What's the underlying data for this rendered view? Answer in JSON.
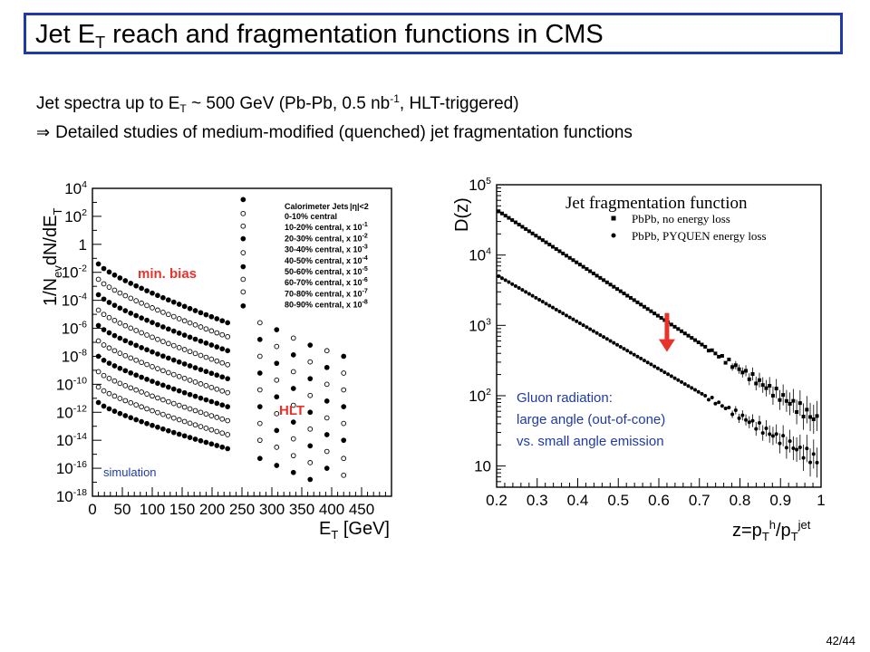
{
  "slide": {
    "title_main": "Jet E",
    "title_sub": "T",
    "title_rest": " reach and fragmentation functions in CMS",
    "bullet1": {
      "a": "Jet spectra up to E",
      "sub": "T",
      "b": " ~ 500 GeV (Pb-Pb, 0.5 nb",
      "sup": "-1",
      "c": ", HLT-triggered)"
    },
    "bullet2": {
      "arrow": "⇒",
      "text": "Detailed studies of medium-modified (quenched) jet fragmentation functions"
    },
    "page_number": "42/44"
  },
  "colors": {
    "accent": "#1f3aa8",
    "red": "#e8332a",
    "blue_text": "#1f3aa8"
  },
  "chart_data": [
    {
      "type": "scatter",
      "title": "",
      "xlabel": "E_T [GeV]",
      "ylabel": "1/N_ev dN/dE_T",
      "ylog": true,
      "xlim": [
        0,
        500
      ],
      "ylim_exp": [
        -18,
        4
      ],
      "x_ticks": [
        "0",
        "50",
        "100",
        "150",
        "200",
        "250",
        "300",
        "350",
        "400",
        "450"
      ],
      "x_tick_values": [
        0,
        50,
        100,
        150,
        200,
        250,
        300,
        350,
        400,
        450
      ],
      "y_ticks": [
        {
          "e": 4,
          "label": "10",
          "sup": "4"
        },
        {
          "e": 2,
          "label": "10",
          "sup": "2"
        },
        {
          "e": 0,
          "label": "1",
          "sup": ""
        },
        {
          "e": -2,
          "label": "10",
          "sup": "-2"
        },
        {
          "e": -4,
          "label": "10",
          "sup": "-4"
        },
        {
          "e": -6,
          "label": "10",
          "sup": "-6"
        },
        {
          "e": -8,
          "label": "10",
          "sup": "-8"
        },
        {
          "e": -10,
          "label": "10",
          "sup": "-10"
        },
        {
          "e": -12,
          "label": "10",
          "sup": "-12"
        },
        {
          "e": -14,
          "label": "10",
          "sup": "-14"
        },
        {
          "e": -16,
          "label": "10",
          "sup": "-16"
        },
        {
          "e": -18,
          "label": "10",
          "sup": "-18"
        }
      ],
      "legend_title": "Calorimeter Jets",
      "legend_cut": "|η|<2",
      "legend_entries": [
        {
          "label": "0-10% central",
          "sup": "",
          "filled": true
        },
        {
          "label": "10-20% central, x 10",
          "sup": "-1",
          "filled": false
        },
        {
          "label": "20-30% central, x 10",
          "sup": "-2",
          "filled": false
        },
        {
          "label": "30-40% central, x 10",
          "sup": "-3",
          "filled": true
        },
        {
          "label": "40-50% central, x 10",
          "sup": "-4",
          "filled": false
        },
        {
          "label": "50-60% central, x 10",
          "sup": "-5",
          "filled": true
        },
        {
          "label": "60-70% central, x 10",
          "sup": "-6",
          "filled": false
        },
        {
          "label": "70-80% central, x 10",
          "sup": "-7",
          "filled": false
        },
        {
          "label": "80-90% central, x 10",
          "sup": "-8",
          "filled": true
        }
      ],
      "annotations": {
        "min_bias": "min. bias",
        "hlt": "HLT",
        "simulation": "simulation"
      },
      "minbias_x": [
        10,
        19,
        28,
        37,
        46,
        55,
        64,
        73,
        82,
        91,
        100,
        109,
        118,
        127,
        136,
        145,
        154,
        163,
        172,
        181,
        190,
        199,
        208,
        217,
        226
      ],
      "minbias_series": [
        {
          "filled": true,
          "start_exp": -1.4,
          "end_exp": -5.6
        },
        {
          "filled": false,
          "start_exp": -2.5,
          "end_exp": -6.6
        },
        {
          "filled": true,
          "start_exp": -3.6,
          "end_exp": -7.6
        },
        {
          "filled": false,
          "start_exp": -4.7,
          "end_exp": -8.6
        },
        {
          "filled": true,
          "start_exp": -5.8,
          "end_exp": -9.6
        },
        {
          "filled": false,
          "start_exp": -6.9,
          "end_exp": -10.6
        },
        {
          "filled": true,
          "start_exp": -8.0,
          "end_exp": -11.6
        },
        {
          "filled": false,
          "start_exp": -9.1,
          "end_exp": -12.6
        },
        {
          "filled": false,
          "start_exp": -10.2,
          "end_exp": -13.6
        },
        {
          "filled": true,
          "start_exp": -11.3,
          "end_exp": -14.6
        }
      ],
      "hlt_columns": [
        {
          "x": 252,
          "points": [
            {
              "e": 3.2,
              "f": true
            },
            {
              "e": 2.2,
              "f": false
            },
            {
              "e": 1.3,
              "f": false
            },
            {
              "e": 0.4,
              "f": true
            },
            {
              "e": -0.6,
              "f": false
            },
            {
              "e": -1.6,
              "f": true
            },
            {
              "e": -2.5,
              "f": false
            },
            {
              "e": -3.4,
              "f": false
            },
            {
              "e": -4.4,
              "f": true
            }
          ]
        },
        {
          "x": 280,
          "points": [
            {
              "e": -5.6,
              "f": false
            },
            {
              "e": -6.8,
              "f": true
            },
            {
              "e": -8.0,
              "f": false
            },
            {
              "e": -9.2,
              "f": true
            },
            {
              "e": -10.4,
              "f": false
            },
            {
              "e": -11.6,
              "f": true
            },
            {
              "e": -12.8,
              "f": false
            },
            {
              "e": -14.0,
              "f": false
            },
            {
              "e": -15.3,
              "f": true
            }
          ]
        },
        {
          "x": 308,
          "points": [
            {
              "e": -6.1,
              "f": true
            },
            {
              "e": -7.3,
              "f": false
            },
            {
              "e": -8.5,
              "f": true
            },
            {
              "e": -9.7,
              "f": false
            },
            {
              "e": -10.9,
              "f": true
            },
            {
              "e": -12.1,
              "f": false
            },
            {
              "e": -13.3,
              "f": true
            },
            {
              "e": -14.5,
              "f": false
            },
            {
              "e": -15.8,
              "f": true
            }
          ]
        },
        {
          "x": 336,
          "points": [
            {
              "e": -6.7,
              "f": false
            },
            {
              "e": -7.9,
              "f": true
            },
            {
              "e": -9.1,
              "f": false
            },
            {
              "e": -10.3,
              "f": true
            },
            {
              "e": -11.5,
              "f": false
            },
            {
              "e": -12.7,
              "f": true
            },
            {
              "e": -13.9,
              "f": false
            },
            {
              "e": -15.1,
              "f": false
            },
            {
              "e": -16.3,
              "f": true
            }
          ]
        },
        {
          "x": 364,
          "points": [
            {
              "e": -7.2,
              "f": true
            },
            {
              "e": -8.4,
              "f": false
            },
            {
              "e": -9.6,
              "f": true
            },
            {
              "e": -10.8,
              "f": false
            },
            {
              "e": -12.0,
              "f": true
            },
            {
              "e": -13.2,
              "f": false
            },
            {
              "e": -14.4,
              "f": true
            },
            {
              "e": -15.6,
              "f": false
            },
            {
              "e": -16.8,
              "f": true
            }
          ]
        },
        {
          "x": 392,
          "points": [
            {
              "e": -7.6,
              "f": false
            },
            {
              "e": -8.8,
              "f": true
            },
            {
              "e": -10.0,
              "f": false
            },
            {
              "e": -11.2,
              "f": true
            },
            {
              "e": -12.4,
              "f": false
            },
            {
              "e": -13.6,
              "f": true
            },
            {
              "e": -14.8,
              "f": false
            },
            {
              "e": -16.0,
              "f": true
            }
          ]
        },
        {
          "x": 420,
          "points": [
            {
              "e": -8.0,
              "f": true
            },
            {
              "e": -9.2,
              "f": false
            },
            {
              "e": -10.4,
              "f": false
            },
            {
              "e": -11.6,
              "f": true
            },
            {
              "e": -12.8,
              "f": false
            },
            {
              "e": -14.0,
              "f": true
            },
            {
              "e": -15.3,
              "f": false
            },
            {
              "e": -16.5,
              "f": false
            }
          ]
        }
      ]
    },
    {
      "type": "scatter",
      "title": "Jet fragmentation function",
      "xlabel": "z=p_T^h/p_T^jet",
      "ylabel": "D(z)",
      "ylog": true,
      "xlim": [
        0.2,
        1.0
      ],
      "ylim": [
        5,
        100000
      ],
      "x_ticks": [
        "0.2",
        "0.3",
        "0.4",
        "0.5",
        "0.6",
        "0.7",
        "0.8",
        "0.9",
        "1"
      ],
      "x_tick_values": [
        0.2,
        0.3,
        0.4,
        0.5,
        0.6,
        0.7,
        0.8,
        0.9,
        1.0
      ],
      "y_ticks": [
        {
          "v": 100000,
          "label": "10",
          "sup": "5"
        },
        {
          "v": 10000,
          "label": "10",
          "sup": "4"
        },
        {
          "v": 1000,
          "label": "10",
          "sup": "3"
        },
        {
          "v": 100,
          "label": "10",
          "sup": "2"
        },
        {
          "v": 10,
          "label": "10",
          "sup": ""
        }
      ],
      "series": [
        {
          "name": "PbPb, no energy loss",
          "marker": "square",
          "start": [
            0.205,
            42000
          ],
          "end": [
            0.99,
            45
          ]
        },
        {
          "name": "PbPb, PYQUEN energy loss",
          "marker": "circle",
          "start": [
            0.205,
            5000
          ],
          "end": [
            0.99,
            12
          ]
        }
      ],
      "annotation": {
        "line1": "Gluon radiation:",
        "line2": "large angle (out-of-cone)",
        "line3": "vs. small angle emission"
      },
      "arrow": {
        "x": 0.62,
        "from": 1500,
        "to": 420
      }
    }
  ]
}
